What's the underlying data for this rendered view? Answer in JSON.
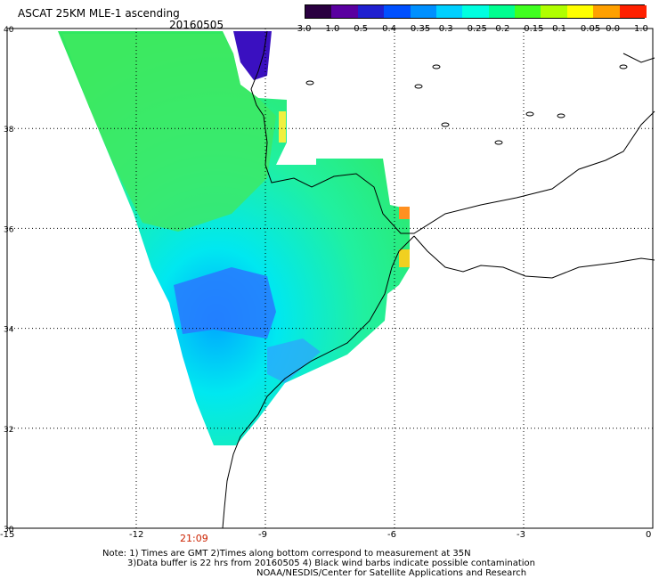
{
  "header": {
    "title": "ASCAT 25KM MLE-1 ascending",
    "date": "20160505"
  },
  "colorbar": {
    "labels": [
      "-3.0",
      "-1.0",
      "-0.5",
      "-0.4",
      "-0.35",
      "-0.3",
      "-0.25",
      "-0.2",
      "-0.15",
      "-0.1",
      "-0.05",
      "0.0",
      "1.0"
    ],
    "colors": [
      "#2a0040",
      "#5a00a0",
      "#2020d0",
      "#0050ff",
      "#0090ff",
      "#00d0ff",
      "#00ffe0",
      "#00ff90",
      "#40ff20",
      "#b0ff00",
      "#ffff00",
      "#ffa000",
      "#ff2000"
    ]
  },
  "axes": {
    "lat_labels": [
      "40",
      "38",
      "36",
      "34",
      "32",
      "30"
    ],
    "lon_labels": [
      "-15",
      "-12",
      "-9",
      "-6",
      "-3",
      "0"
    ]
  },
  "swath": {
    "time_label": "21:09"
  },
  "notes": {
    "line1": "Note: 1) Times are GMT 2)Times along bottom correspond to measurement at 35N",
    "line2": "3)Data buffer is 22 hrs from 20160505 4) Black wind barbs indicate possible contamination",
    "line3": "NOAA/NESDIS/Center for Satellite Applications and Research"
  }
}
